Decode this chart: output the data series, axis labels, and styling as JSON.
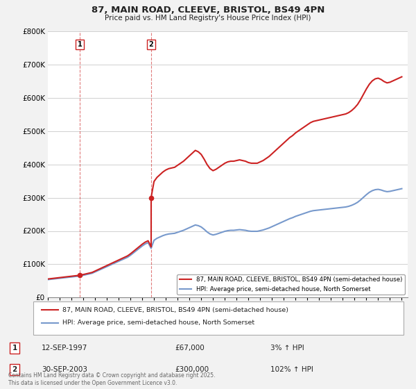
{
  "title_line1": "87, MAIN ROAD, CLEEVE, BRISTOL, BS49 4PN",
  "title_line2": "Price paid vs. HM Land Registry's House Price Index (HPI)",
  "ylim": [
    0,
    800000
  ],
  "yticks": [
    0,
    100000,
    200000,
    300000,
    400000,
    500000,
    600000,
    700000,
    800000
  ],
  "ytick_labels": [
    "£0",
    "£100K",
    "£200K",
    "£300K",
    "£400K",
    "£500K",
    "£600K",
    "£700K",
    "£800K"
  ],
  "bg_color": "#f2f2f2",
  "plot_bg_color": "#ffffff",
  "grid_color": "#d0d0d0",
  "sale1_price": 67000,
  "sale1_x": 1997.7,
  "sale1_label": "1",
  "sale2_price": 300000,
  "sale2_x": 2003.75,
  "sale2_label": "2",
  "red_color": "#cc2222",
  "blue_color": "#7799cc",
  "legend_entries": [
    {
      "label": "87, MAIN ROAD, CLEEVE, BRISTOL, BS49 4PN (semi-detached house)",
      "color": "#cc2222",
      "lw": 1.5
    },
    {
      "label": "HPI: Average price, semi-detached house, North Somerset",
      "color": "#7799cc",
      "lw": 1.5
    }
  ],
  "table_data": [
    {
      "num": "1",
      "date": "12-SEP-1997",
      "price": "£67,000",
      "change": "3% ↑ HPI"
    },
    {
      "num": "2",
      "date": "30-SEP-2003",
      "price": "£300,000",
      "change": "102% ↑ HPI"
    }
  ],
  "footer": "Contains HM Land Registry data © Crown copyright and database right 2025.\nThis data is licensed under the Open Government Licence v3.0.",
  "xmin": 1995.0,
  "xmax": 2025.5,
  "xticks": [
    1995,
    1996,
    1997,
    1998,
    1999,
    2000,
    2001,
    2002,
    2003,
    2004,
    2005,
    2006,
    2007,
    2008,
    2009,
    2010,
    2011,
    2012,
    2013,
    2014,
    2015,
    2016,
    2017,
    2018,
    2019,
    2020,
    2021,
    2022,
    2023,
    2024,
    2025
  ]
}
